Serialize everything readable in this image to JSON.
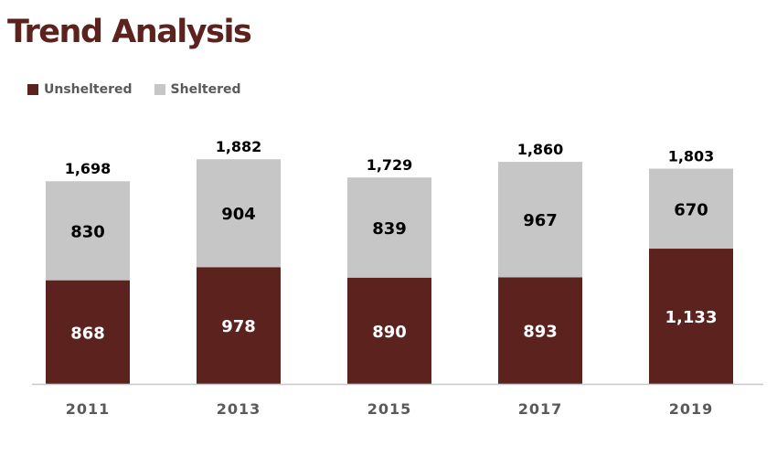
{
  "page": {
    "title": "Trend Analysis"
  },
  "colors": {
    "unsheltered": "#5c221e",
    "sheltered": "#c6c6c6",
    "axis": "#c8c8c8",
    "tick_text": "#5a5a5a"
  },
  "chart_data": {
    "type": "bar",
    "stacked": true,
    "title": "Trend Analysis",
    "xlabel": "",
    "ylabel": "",
    "categories": [
      "2011",
      "2013",
      "2015",
      "2017",
      "2019"
    ],
    "series": [
      {
        "name": "Unsheltered",
        "values": [
          868,
          978,
          890,
          893,
          1133
        ]
      },
      {
        "name": "Sheltered",
        "values": [
          830,
          904,
          839,
          967,
          670
        ]
      }
    ],
    "totals": [
      "1,698",
      "1,882",
      "1,729",
      "1,860",
      "1,803"
    ],
    "value_labels": {
      "Unsheltered": [
        "868",
        "978",
        "890",
        "893",
        "1,133"
      ],
      "Sheltered": [
        "830",
        "904",
        "839",
        "967",
        "670"
      ]
    },
    "legend": {
      "position": "top-left",
      "entries": [
        "Unsheltered",
        "Sheltered"
      ]
    },
    "grid": false
  }
}
